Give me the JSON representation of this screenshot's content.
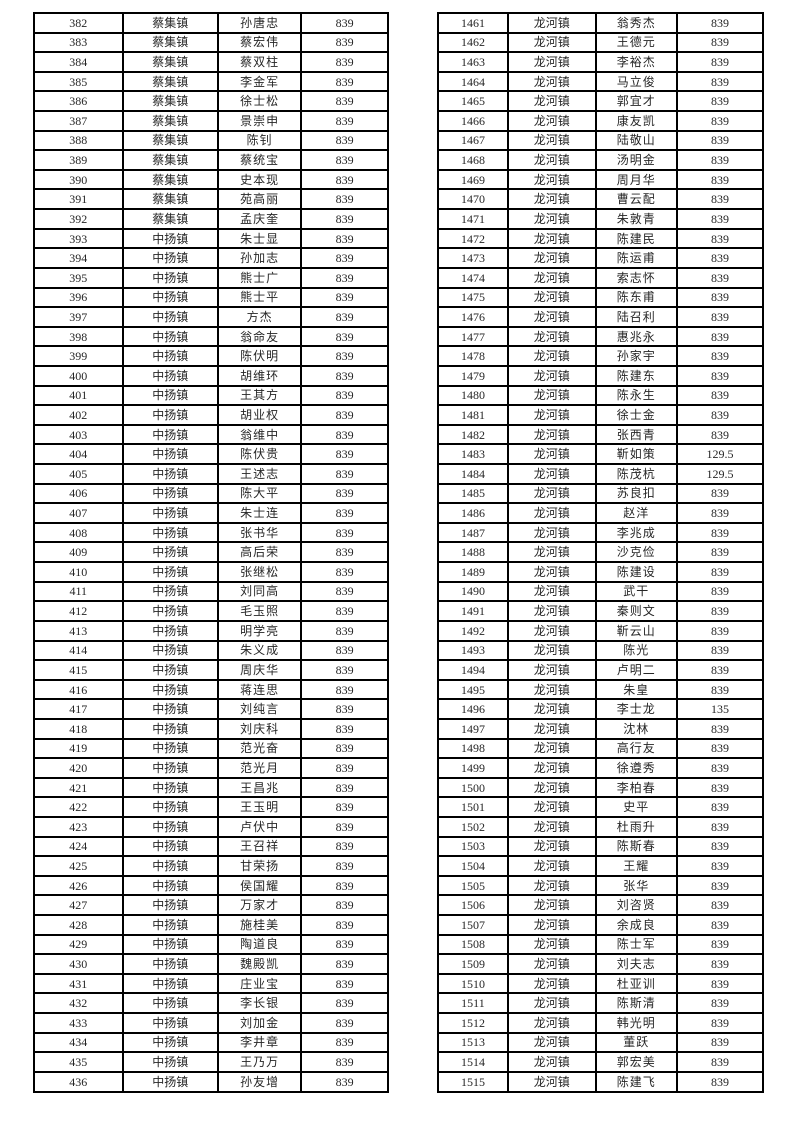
{
  "page": {
    "background_color": "#ffffff",
    "border_color": "#000000",
    "text_color": "#262626"
  },
  "columns": [
    "serial_number",
    "town",
    "person_name",
    "amount"
  ],
  "left_table": {
    "rows": [
      [
        "382",
        "蔡集镇",
        "孙唐忠",
        "839"
      ],
      [
        "383",
        "蔡集镇",
        "蔡宏伟",
        "839"
      ],
      [
        "384",
        "蔡集镇",
        "蔡双柱",
        "839"
      ],
      [
        "385",
        "蔡集镇",
        "李金军",
        "839"
      ],
      [
        "386",
        "蔡集镇",
        "徐士松",
        "839"
      ],
      [
        "387",
        "蔡集镇",
        "景崇申",
        "839"
      ],
      [
        "388",
        "蔡集镇",
        "陈钊",
        "839"
      ],
      [
        "389",
        "蔡集镇",
        "蔡统宝",
        "839"
      ],
      [
        "390",
        "蔡集镇",
        "史本现",
        "839"
      ],
      [
        "391",
        "蔡集镇",
        "苑高丽",
        "839"
      ],
      [
        "392",
        "蔡集镇",
        "孟庆奎",
        "839"
      ],
      [
        "393",
        "中扬镇",
        "朱士显",
        "839"
      ],
      [
        "394",
        "中扬镇",
        "孙加志",
        "839"
      ],
      [
        "395",
        "中扬镇",
        "熊士广",
        "839"
      ],
      [
        "396",
        "中扬镇",
        "熊士平",
        "839"
      ],
      [
        "397",
        "中扬镇",
        "方杰",
        "839"
      ],
      [
        "398",
        "中扬镇",
        "翁命友",
        "839"
      ],
      [
        "399",
        "中扬镇",
        "陈伏明",
        "839"
      ],
      [
        "400",
        "中扬镇",
        "胡维环",
        "839"
      ],
      [
        "401",
        "中扬镇",
        "王其方",
        "839"
      ],
      [
        "402",
        "中扬镇",
        "胡业权",
        "839"
      ],
      [
        "403",
        "中扬镇",
        "翁维中",
        "839"
      ],
      [
        "404",
        "中扬镇",
        "陈伏贵",
        "839"
      ],
      [
        "405",
        "中扬镇",
        "王述志",
        "839"
      ],
      [
        "406",
        "中扬镇",
        "陈大平",
        "839"
      ],
      [
        "407",
        "中扬镇",
        "朱士连",
        "839"
      ],
      [
        "408",
        "中扬镇",
        "张书华",
        "839"
      ],
      [
        "409",
        "中扬镇",
        "高后荣",
        "839"
      ],
      [
        "410",
        "中扬镇",
        "张继松",
        "839"
      ],
      [
        "411",
        "中扬镇",
        "刘同高",
        "839"
      ],
      [
        "412",
        "中扬镇",
        "毛玉照",
        "839"
      ],
      [
        "413",
        "中扬镇",
        "明学亮",
        "839"
      ],
      [
        "414",
        "中扬镇",
        "朱义成",
        "839"
      ],
      [
        "415",
        "中扬镇",
        "周庆华",
        "839"
      ],
      [
        "416",
        "中扬镇",
        "蒋连思",
        "839"
      ],
      [
        "417",
        "中扬镇",
        "刘纯言",
        "839"
      ],
      [
        "418",
        "中扬镇",
        "刘庆科",
        "839"
      ],
      [
        "419",
        "中扬镇",
        "范光奋",
        "839"
      ],
      [
        "420",
        "中扬镇",
        "范光月",
        "839"
      ],
      [
        "421",
        "中扬镇",
        "王昌兆",
        "839"
      ],
      [
        "422",
        "中扬镇",
        "王玉明",
        "839"
      ],
      [
        "423",
        "中扬镇",
        "卢伏中",
        "839"
      ],
      [
        "424",
        "中扬镇",
        "王召祥",
        "839"
      ],
      [
        "425",
        "中扬镇",
        "甘荣扬",
        "839"
      ],
      [
        "426",
        "中扬镇",
        "侯国耀",
        "839"
      ],
      [
        "427",
        "中扬镇",
        "万家才",
        "839"
      ],
      [
        "428",
        "中扬镇",
        "施桂美",
        "839"
      ],
      [
        "429",
        "中扬镇",
        "陶道良",
        "839"
      ],
      [
        "430",
        "中扬镇",
        "魏殿凯",
        "839"
      ],
      [
        "431",
        "中扬镇",
        "庄业宝",
        "839"
      ],
      [
        "432",
        "中扬镇",
        "李长银",
        "839"
      ],
      [
        "433",
        "中扬镇",
        "刘加金",
        "839"
      ],
      [
        "434",
        "中扬镇",
        "李井章",
        "839"
      ],
      [
        "435",
        "中扬镇",
        "王乃万",
        "839"
      ],
      [
        "436",
        "中扬镇",
        "孙友增",
        "839"
      ]
    ]
  },
  "right_table": {
    "rows": [
      [
        "1461",
        "龙河镇",
        "翁秀杰",
        "839"
      ],
      [
        "1462",
        "龙河镇",
        "王德元",
        "839"
      ],
      [
        "1463",
        "龙河镇",
        "李裕杰",
        "839"
      ],
      [
        "1464",
        "龙河镇",
        "马立俊",
        "839"
      ],
      [
        "1465",
        "龙河镇",
        "郭宜才",
        "839"
      ],
      [
        "1466",
        "龙河镇",
        "康友凯",
        "839"
      ],
      [
        "1467",
        "龙河镇",
        "陆敬山",
        "839"
      ],
      [
        "1468",
        "龙河镇",
        "汤明金",
        "839"
      ],
      [
        "1469",
        "龙河镇",
        "周月华",
        "839"
      ],
      [
        "1470",
        "龙河镇",
        "曹云配",
        "839"
      ],
      [
        "1471",
        "龙河镇",
        "朱敦青",
        "839"
      ],
      [
        "1472",
        "龙河镇",
        "陈建民",
        "839"
      ],
      [
        "1473",
        "龙河镇",
        "陈运甫",
        "839"
      ],
      [
        "1474",
        "龙河镇",
        "索志怀",
        "839"
      ],
      [
        "1475",
        "龙河镇",
        "陈东甫",
        "839"
      ],
      [
        "1476",
        "龙河镇",
        "陆召利",
        "839"
      ],
      [
        "1477",
        "龙河镇",
        "惠兆永",
        "839"
      ],
      [
        "1478",
        "龙河镇",
        "孙家宇",
        "839"
      ],
      [
        "1479",
        "龙河镇",
        "陈建东",
        "839"
      ],
      [
        "1480",
        "龙河镇",
        "陈永生",
        "839"
      ],
      [
        "1481",
        "龙河镇",
        "徐士金",
        "839"
      ],
      [
        "1482",
        "龙河镇",
        "张西青",
        "839"
      ],
      [
        "1483",
        "龙河镇",
        "靳如策",
        "129.5"
      ],
      [
        "1484",
        "龙河镇",
        "陈茂杭",
        "129.5"
      ],
      [
        "1485",
        "龙河镇",
        "苏良扣",
        "839"
      ],
      [
        "1486",
        "龙河镇",
        "赵洋",
        "839"
      ],
      [
        "1487",
        "龙河镇",
        "李兆成",
        "839"
      ],
      [
        "1488",
        "龙河镇",
        "沙克俭",
        "839"
      ],
      [
        "1489",
        "龙河镇",
        "陈建设",
        "839"
      ],
      [
        "1490",
        "龙河镇",
        "武干",
        "839"
      ],
      [
        "1491",
        "龙河镇",
        "秦则文",
        "839"
      ],
      [
        "1492",
        "龙河镇",
        "靳云山",
        "839"
      ],
      [
        "1493",
        "龙河镇",
        "陈光",
        "839"
      ],
      [
        "1494",
        "龙河镇",
        "卢明二",
        "839"
      ],
      [
        "1495",
        "龙河镇",
        "朱皇",
        "839"
      ],
      [
        "1496",
        "龙河镇",
        "李士龙",
        "135"
      ],
      [
        "1497",
        "龙河镇",
        "沈林",
        "839"
      ],
      [
        "1498",
        "龙河镇",
        "高行友",
        "839"
      ],
      [
        "1499",
        "龙河镇",
        "徐遵秀",
        "839"
      ],
      [
        "1500",
        "龙河镇",
        "李柏春",
        "839"
      ],
      [
        "1501",
        "龙河镇",
        "史平",
        "839"
      ],
      [
        "1502",
        "龙河镇",
        "杜雨升",
        "839"
      ],
      [
        "1503",
        "龙河镇",
        "陈斯春",
        "839"
      ],
      [
        "1504",
        "龙河镇",
        "王耀",
        "839"
      ],
      [
        "1505",
        "龙河镇",
        "张华",
        "839"
      ],
      [
        "1506",
        "龙河镇",
        "刘咨贤",
        "839"
      ],
      [
        "1507",
        "龙河镇",
        "余成良",
        "839"
      ],
      [
        "1508",
        "龙河镇",
        "陈士军",
        "839"
      ],
      [
        "1509",
        "龙河镇",
        "刘夫志",
        "839"
      ],
      [
        "1510",
        "龙河镇",
        "杜亚训",
        "839"
      ],
      [
        "1511",
        "龙河镇",
        "陈斯清",
        "839"
      ],
      [
        "1512",
        "龙河镇",
        "韩光明",
        "839"
      ],
      [
        "1513",
        "龙河镇",
        "董跃",
        "839"
      ],
      [
        "1514",
        "龙河镇",
        "郭宏美",
        "839"
      ],
      [
        "1515",
        "龙河镇",
        "陈建飞",
        "839"
      ]
    ]
  }
}
